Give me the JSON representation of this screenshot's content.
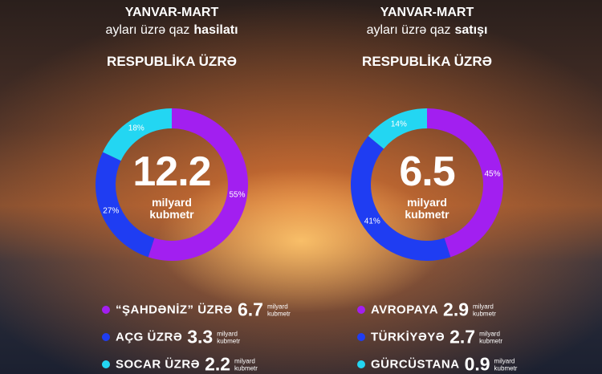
{
  "chart_data": [
    {
      "type": "donut",
      "title": "YANVAR-MART",
      "subtitle": "ayları üzrə qaz",
      "subtitle_emphasis": "hasilatı",
      "heading": "RESPUBLİKA ÜZRƏ",
      "total": 12.2,
      "unit": "milyard kubmetr",
      "categories": [
        "“ŞAHDƏNİZ” ÜZRƏ",
        "AÇG ÜZRƏ",
        "SOCAR ÜZRƏ"
      ],
      "values": [
        55,
        27,
        18
      ],
      "value_labels": [
        "55%",
        "27%",
        "18%"
      ],
      "amounts": [
        6.7,
        3.3,
        2.2
      ],
      "colors": [
        "#a21ff0",
        "#1f3df2",
        "#23d6f2"
      ]
    },
    {
      "type": "donut",
      "title": "YANVAR-MART",
      "subtitle": "ayları üzrə qaz",
      "subtitle_emphasis": "satışı",
      "heading": "RESPUBLİKA ÜZRƏ",
      "total": 6.5,
      "unit": "milyard kubmetr",
      "categories": [
        "AVROPAYA",
        "TÜRKİYƏYƏ",
        "GÜRCÜSTANA"
      ],
      "values": [
        45,
        41,
        14
      ],
      "value_labels": [
        "45%",
        "41%",
        "14%"
      ],
      "amounts": [
        2.9,
        2.7,
        0.9
      ],
      "colors": [
        "#a21ff0",
        "#1f3df2",
        "#23d6f2"
      ]
    }
  ]
}
